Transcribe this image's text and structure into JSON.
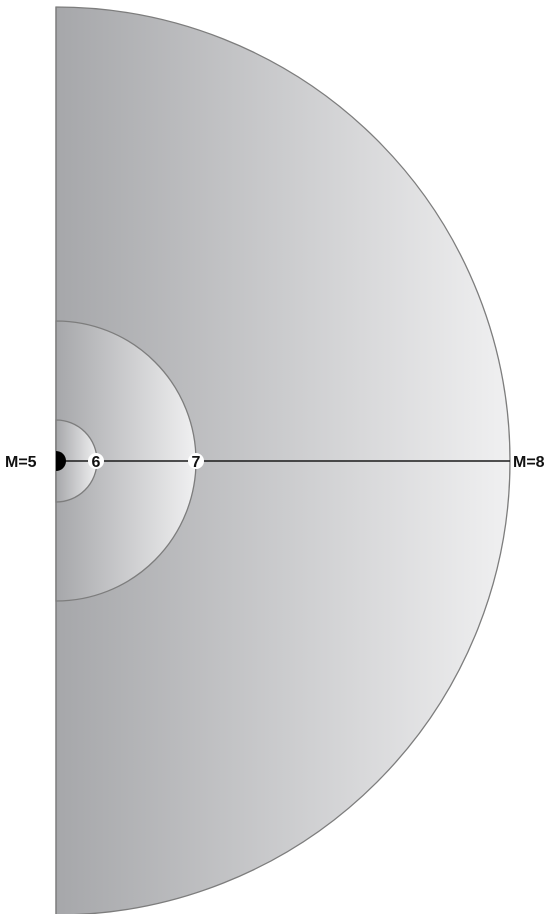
{
  "diagram": {
    "labels": {
      "m5": "M=5",
      "m6": "6",
      "m7": "7",
      "m8": "M=8"
    },
    "colors": {
      "gradient_dark": "#a6a7aa",
      "gradient_light": "#f0f0f1",
      "outline": "#7d7d7d",
      "line": "#1a1a1a",
      "dot": "#000000",
      "label_bg": "#ffffff"
    }
  }
}
